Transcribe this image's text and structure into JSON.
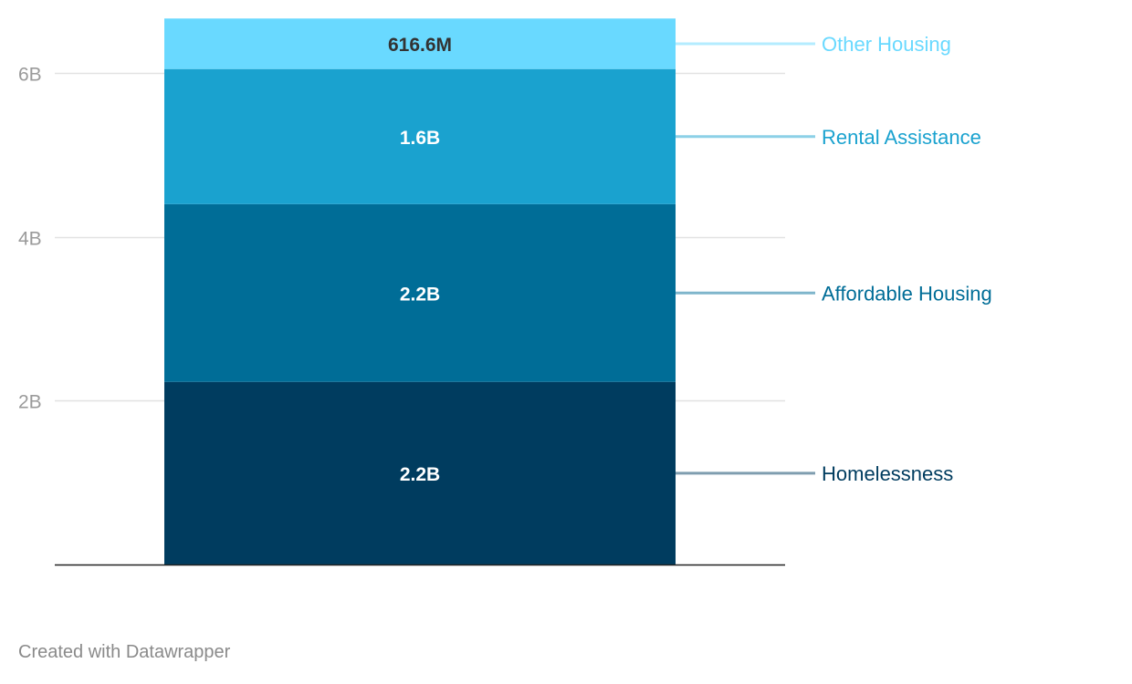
{
  "chart_data": {
    "type": "bar",
    "stacked": true,
    "ylim": [
      0,
      6.67
    ],
    "y_ticks": [
      {
        "value": 2,
        "label": "2B"
      },
      {
        "value": 4,
        "label": "4B"
      },
      {
        "value": 6,
        "label": "6B"
      }
    ],
    "grid": true,
    "series": [
      {
        "name": "Homelessness",
        "value": 2.23,
        "value_label": "2.2B",
        "color": "#003c5f",
        "label_color": "#003c5f",
        "leader_color": "#7f9daf",
        "text_color": "#ffffff",
        "text_halo": "#003c5f"
      },
      {
        "name": "Affordable Housing",
        "value": 2.17,
        "value_label": "2.2B",
        "color": "#006d97",
        "label_color": "#006d97",
        "leader_color": "#7fb5cb",
        "text_color": "#ffffff",
        "text_halo": "#006d97"
      },
      {
        "name": "Rental Assistance",
        "value": 1.65,
        "value_label": "1.6B",
        "color": "#1aa2cf",
        "label_color": "#1aa2cf",
        "leader_color": "#8cd0e7",
        "text_color": "#ffffff",
        "text_halo": "#1aa2cf"
      },
      {
        "name": "Other Housing",
        "value": 0.6166,
        "value_label": "616.6M",
        "color": "#69d9ff",
        "label_color": "#69d9ff",
        "leader_color": "#b4ecff",
        "text_color": "#333333",
        "text_halo": "#69d9ff"
      }
    ]
  },
  "footer": {
    "credit": "Created with Datawrapper"
  }
}
